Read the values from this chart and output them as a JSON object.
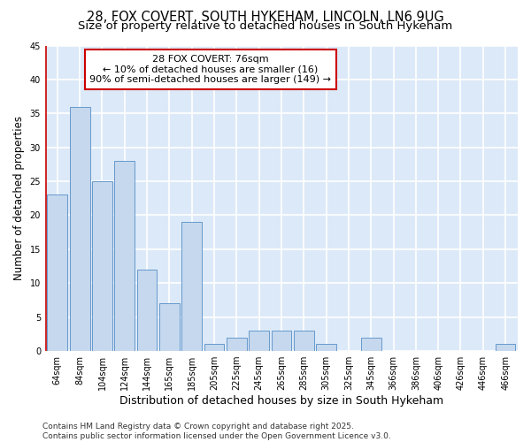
{
  "title": "28, FOX COVERT, SOUTH HYKEHAM, LINCOLN, LN6 9UG",
  "subtitle": "Size of property relative to detached houses in South Hykeham",
  "xlabel": "Distribution of detached houses by size in South Hykeham",
  "ylabel": "Number of detached properties",
  "categories": [
    "64sqm",
    "84sqm",
    "104sqm",
    "124sqm",
    "144sqm",
    "165sqm",
    "185sqm",
    "205sqm",
    "225sqm",
    "245sqm",
    "265sqm",
    "285sqm",
    "305sqm",
    "325sqm",
    "345sqm",
    "366sqm",
    "386sqm",
    "406sqm",
    "426sqm",
    "446sqm",
    "466sqm"
  ],
  "values": [
    23,
    36,
    25,
    28,
    12,
    7,
    19,
    1,
    2,
    3,
    3,
    3,
    1,
    0,
    2,
    0,
    0,
    0,
    0,
    0,
    1
  ],
  "bar_color": "#c5d8ee",
  "bar_edge_color": "#6699cc",
  "plot_bg_color": "#dce9f8",
  "fig_bg_color": "#ffffff",
  "grid_color": "#ffffff",
  "annotation_line1": "28 FOX COVERT: 76sqm",
  "annotation_line2": "← 10% of detached houses are smaller (16)",
  "annotation_line3": "90% of semi-detached houses are larger (149) →",
  "annotation_box_edge": "#cc0000",
  "vline_x_index": -0.5,
  "ylim": [
    0,
    45
  ],
  "yticks": [
    0,
    5,
    10,
    15,
    20,
    25,
    30,
    35,
    40,
    45
  ],
  "footer": "Contains HM Land Registry data © Crown copyright and database right 2025.\nContains public sector information licensed under the Open Government Licence v3.0.",
  "title_fontsize": 10.5,
  "subtitle_fontsize": 9.5,
  "xlabel_fontsize": 9,
  "ylabel_fontsize": 8.5,
  "tick_fontsize": 7,
  "annotation_fontsize": 8,
  "footer_fontsize": 6.5
}
